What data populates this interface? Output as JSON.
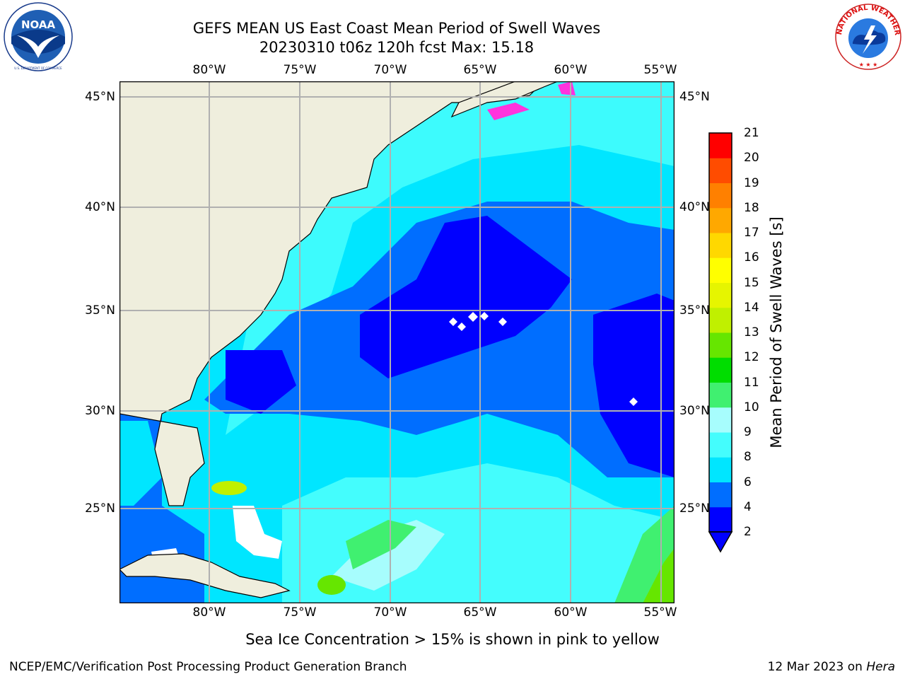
{
  "title": {
    "line1": "GEFS MEAN US East Coast Mean Period of Swell Waves",
    "line2": "20230310 t06z 120h fcst   Max: 15.18"
  },
  "map": {
    "lon_labels": [
      "80°W",
      "75°W",
      "70°W",
      "65°W",
      "60°W",
      "55°W"
    ],
    "lat_labels": [
      "45°N",
      "40°N",
      "35°N",
      "30°N",
      "25°N"
    ],
    "extent": {
      "lon": [
        -85,
        -54.5
      ],
      "lat": [
        20.5,
        46
      ]
    },
    "land_color": "#efeedd"
  },
  "colorbar": {
    "title": "Mean Period of Swell Waves [s]",
    "ticks": [
      "2",
      "4",
      "6",
      "8",
      "9",
      "10",
      "11",
      "12",
      "13",
      "14",
      "15",
      "16",
      "17",
      "18",
      "19",
      "20",
      "21"
    ],
    "colors": [
      "#0000ff",
      "#006eff",
      "#00e6ff",
      "#44fdfd",
      "#a7fdfd",
      "#40f070",
      "#00dd00",
      "#66e600",
      "#c0f000",
      "#e6f500",
      "#ffff00",
      "#ffd800",
      "#ffa800",
      "#ff8000",
      "#ff4c00",
      "#ff0000"
    ],
    "extend_color": "#0000ff"
  },
  "footer": {
    "note": "Sea Ice Concentration > 15% is shown in pink to yellow",
    "left": "NCEP/EMC/Verification Post Processing Product Generation Branch",
    "right_date": "12 Mar 2023 on ",
    "right_host": "Hera"
  },
  "logos": {
    "noaa": "NOAA",
    "nws": "NATIONAL WEATHER SERVICE"
  }
}
